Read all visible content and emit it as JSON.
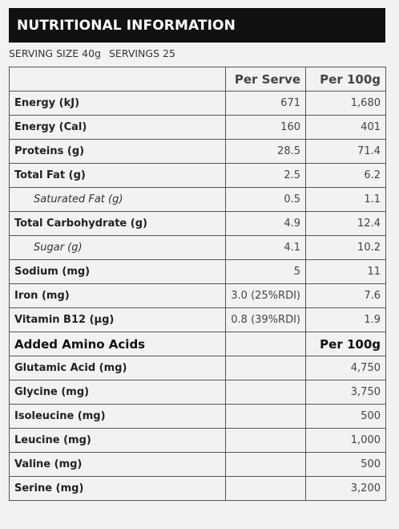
{
  "header": {
    "title": "NUTRITIONAL INFORMATION"
  },
  "serving": {
    "size": "SERVING SIZE 40g",
    "servings": "SERVINGS 25"
  },
  "table": {
    "columns": [
      "",
      "Per Serve",
      "Per 100g"
    ],
    "rows": [
      {
        "label": "Energy (kJ)",
        "per_serve": "671",
        "per_100g": "1,680"
      },
      {
        "label": "Energy (Cal)",
        "per_serve": "160",
        "per_100g": "401"
      },
      {
        "label": "Proteins (g)",
        "per_serve": "28.5",
        "per_100g": "71.4"
      },
      {
        "label": "Total Fat (g)",
        "per_serve": "2.5",
        "per_100g": "6.2"
      },
      {
        "label": "Saturated Fat (g)",
        "per_serve": "0.5",
        "per_100g": "1.1"
      },
      {
        "label": "Total Carbohydrate (g)",
        "per_serve": "4.9",
        "per_100g": "12.4"
      },
      {
        "label": "Sugar (g)",
        "per_serve": "4.1",
        "per_100g": "10.2"
      },
      {
        "label": "Sodium (mg)",
        "per_serve": "5",
        "per_100g": "11"
      },
      {
        "label": "Iron (mg)",
        "per_serve": "3.0 (25%RDI)",
        "per_100g": "7.6"
      },
      {
        "label": "Vitamin B12 (µg)",
        "per_serve": "0.8 (39%RDI)",
        "per_100g": "1.9"
      }
    ]
  },
  "amino": {
    "heading": "Added Amino Acids",
    "per_100g_label": "Per 100g",
    "rows": [
      {
        "label": "Glutamic Acid (mg)",
        "per_100g": "4,750"
      },
      {
        "label": "Glycine (mg)",
        "per_100g": "3,750"
      },
      {
        "label": "Isoleucine (mg)",
        "per_100g": "500"
      },
      {
        "label": "Leucine (mg)",
        "per_100g": "1,000"
      },
      {
        "label": "Valine (mg)",
        "per_100g": "500"
      },
      {
        "label": "Serine (mg)",
        "per_100g": "3,200"
      }
    ]
  }
}
